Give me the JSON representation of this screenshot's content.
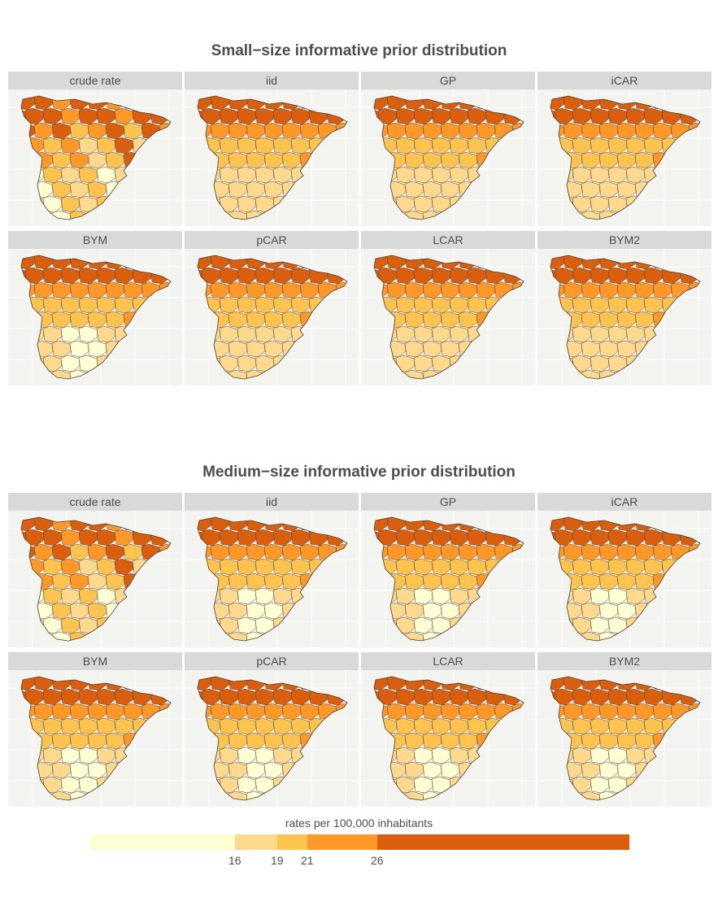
{
  "titles": {
    "small": "Small−size informative prior distribution",
    "medium": "Medium−size informative prior distribution"
  },
  "panels": [
    "crude rate",
    "iid",
    "GP",
    "iCAR",
    "BYM",
    "pCAR",
    "LCAR",
    "BYM2"
  ],
  "legend": {
    "title": "rates per 100,000 inhabitants",
    "ticks": [
      "16",
      "19",
      "21",
      "26"
    ],
    "classes": [
      {
        "color": "#ffffd4",
        "from": 0,
        "to": 16
      },
      {
        "color": "#fed98e",
        "from": 16,
        "to": 19
      },
      {
        "color": "#fec44f",
        "from": 19,
        "to": 21
      },
      {
        "color": "#fe9929",
        "from": 21,
        "to": 26
      },
      {
        "color": "#d95f0e",
        "from": 26,
        "to": 40
      }
    ]
  },
  "colors": {
    "background": "#f3f3f0",
    "strip": "#d9d9d9",
    "boundary": "#5a4a3a"
  }
}
